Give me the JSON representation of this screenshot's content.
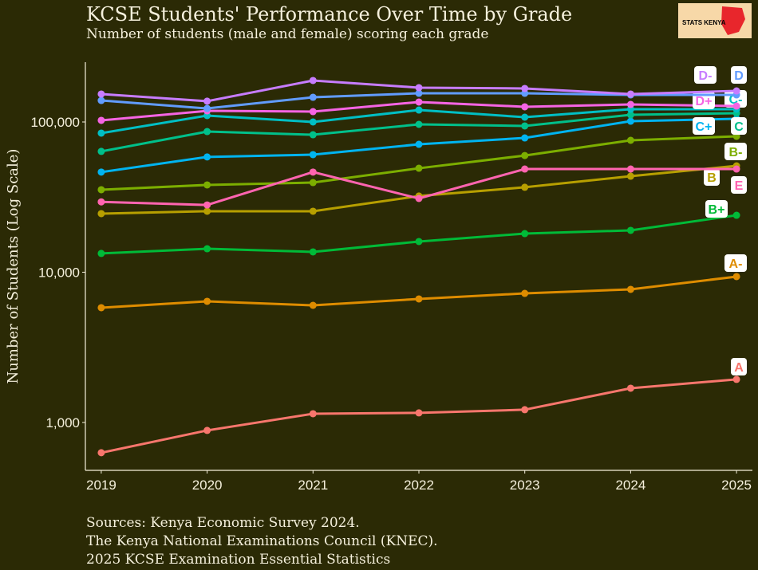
{
  "chart_data": {
    "type": "line",
    "title": "KCSE Students' Performance Over Time by Grade",
    "subtitle": "Number of students (male and female) scoring each grade",
    "y_label": "Number of Students (Log Scale)",
    "logo_text": "STATS KENYA",
    "caption": [
      "Sources: Kenya Economic Survey 2024.",
      "The Kenya National Examinations Council (KNEC).",
      "2025 KCSE Examination Essential Statistics"
    ],
    "x": [
      2019,
      2020,
      2021,
      2022,
      2023,
      2024,
      2025
    ],
    "xlim": [
      2018.85,
      2025.15
    ],
    "xticks": [
      2019,
      2020,
      2021,
      2022,
      2023,
      2024,
      2025
    ],
    "ylim": [
      480,
      250000
    ],
    "y_scale": "log",
    "yticks": [
      {
        "value": 1000,
        "label": "1,000"
      },
      {
        "value": 10000,
        "label": "10,000"
      },
      {
        "value": 100000,
        "label": "100,000"
      }
    ],
    "grid": false,
    "series": [
      {
        "name": "A",
        "color": "#F8766D",
        "values": [
          629,
          885,
          1143,
          1158,
          1216,
          1690,
          1935
        ]
      },
      {
        "name": "A-",
        "color": "#DE8C00",
        "values": [
          5807,
          6400,
          6020,
          6640,
          7230,
          7690,
          9350
        ]
      },
      {
        "name": "B+",
        "color": "#00BA38",
        "values": [
          13330,
          14330,
          13650,
          16000,
          18070,
          18990,
          23940
        ]
      },
      {
        "name": "B",
        "color": "#B79F00",
        "values": [
          24550,
          25470,
          25470,
          32130,
          36750,
          43560,
          51050
        ]
      },
      {
        "name": "B-",
        "color": "#7CAE00",
        "values": [
          35400,
          38100,
          39500,
          49200,
          59800,
          75500,
          80300
        ]
      },
      {
        "name": "C+",
        "color": "#00B4F0",
        "values": [
          46400,
          58500,
          60600,
          71000,
          78300,
          101200,
          105000
        ]
      },
      {
        "name": "C",
        "color": "#00C08B",
        "values": [
          63700,
          86300,
          82200,
          96400,
          94100,
          111600,
          114400
        ]
      },
      {
        "name": "C-",
        "color": "#00BFC4",
        "values": [
          84300,
          110300,
          100000,
          120100,
          107600,
          121600,
          121600
        ]
      },
      {
        "name": "D+",
        "color": "#F564E3",
        "values": [
          102500,
          118600,
          117200,
          135800,
          126200,
          130800,
          127600
        ]
      },
      {
        "name": "D",
        "color": "#619CFF",
        "values": [
          139000,
          123000,
          146000,
          155200,
          155200,
          151400,
          151400
        ]
      },
      {
        "name": "D-",
        "color": "#C77CFF",
        "values": [
          153400,
          137500,
          188800,
          169200,
          167100,
          153400,
          161000
        ]
      },
      {
        "name": "E",
        "color": "#FF64B0",
        "values": [
          29400,
          28030,
          46400,
          30950,
          48600,
          48600,
          48600
        ]
      }
    ]
  }
}
